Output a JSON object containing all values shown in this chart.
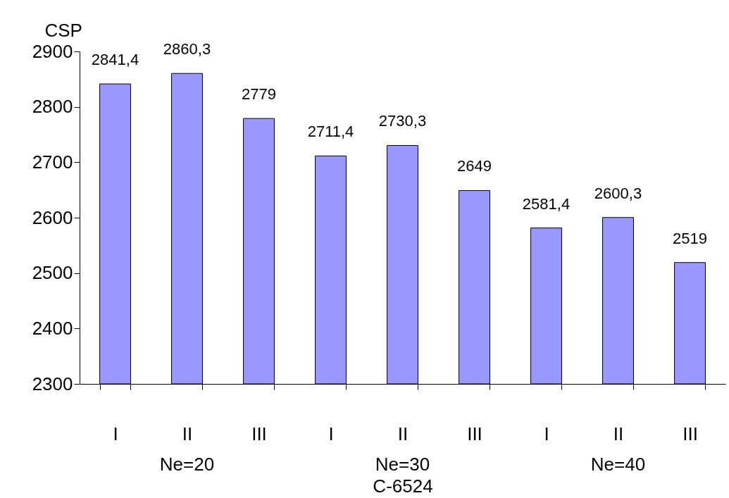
{
  "chart_data": {
    "type": "bar",
    "ylabel": "CSP",
    "xlabel": "C-6524",
    "categories": [
      "I",
      "II",
      "III",
      "I",
      "II",
      "III",
      "I",
      "II",
      "III"
    ],
    "values": [
      2841.4,
      2860.3,
      2779,
      2711.4,
      2730.3,
      2649,
      2581.4,
      2600.3,
      2519
    ],
    "value_labels": [
      "2841,4",
      "2860,3",
      "2779",
      "2711,4",
      "2730,3",
      "2649",
      "2581,4",
      "2600,3",
      "2519"
    ],
    "color": "#9999ff",
    "ylim": [
      2300,
      2900
    ],
    "yticks": [
      2300,
      2400,
      2500,
      2600,
      2700,
      2800,
      2900
    ],
    "annotations": [
      "Ne=20",
      "Ne=30",
      "Ne=40"
    ],
    "grid": false
  }
}
